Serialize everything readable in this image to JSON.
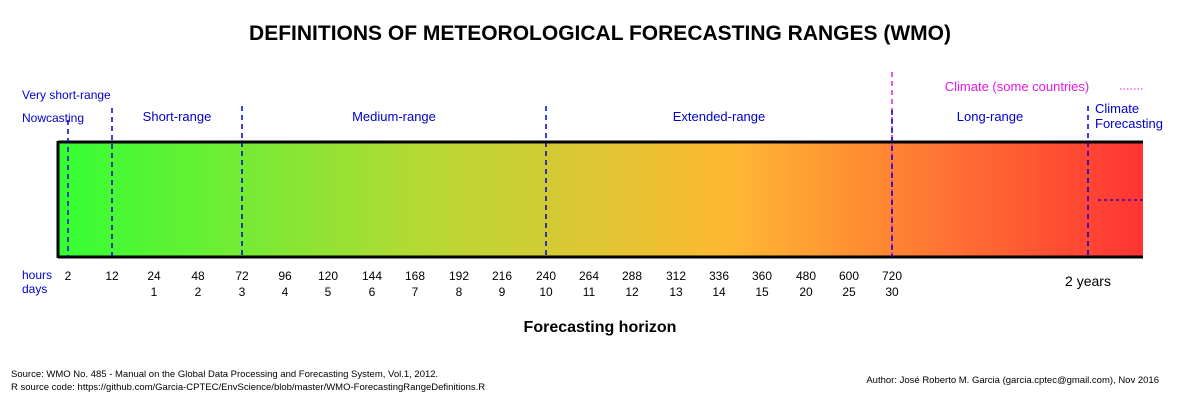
{
  "title": "DEFINITIONS OF METEOROLOGICAL FORECASTING RANGES (WMO)",
  "xlabel": "Forecasting horizon",
  "row_labels": {
    "hours": "hours",
    "days": "days"
  },
  "ranges": [
    {
      "id": "very-short-range",
      "label": "Very short-range",
      "color": "#0000cc"
    },
    {
      "id": "nowcasting",
      "label": "Nowcasting",
      "color": "#0000cc"
    },
    {
      "id": "short-range",
      "label": "Short-range",
      "color": "#0000cc"
    },
    {
      "id": "medium-range",
      "label": "Medium-range",
      "color": "#0000cc"
    },
    {
      "id": "extended-range",
      "label": "Extended-range",
      "color": "#0000cc"
    },
    {
      "id": "long-range",
      "label": "Long-range",
      "color": "#0000cc"
    },
    {
      "id": "climate-forecasting",
      "label": "Climate\nForecasting",
      "color": "#0000cc"
    },
    {
      "id": "climate-some-countries",
      "label": "Climate (some countries)",
      "color": "#e619e6"
    }
  ],
  "ticks": [
    {
      "hours": "2",
      "days": ""
    },
    {
      "hours": "12",
      "days": ""
    },
    {
      "hours": "24",
      "days": "1"
    },
    {
      "hours": "48",
      "days": "2"
    },
    {
      "hours": "72",
      "days": "3"
    },
    {
      "hours": "96",
      "days": "4"
    },
    {
      "hours": "120",
      "days": "5"
    },
    {
      "hours": "144",
      "days": "6"
    },
    {
      "hours": "168",
      "days": "7"
    },
    {
      "hours": "192",
      "days": "8"
    },
    {
      "hours": "216",
      "days": "9"
    },
    {
      "hours": "240",
      "days": "10"
    },
    {
      "hours": "264",
      "days": "11"
    },
    {
      "hours": "288",
      "days": "12"
    },
    {
      "hours": "312",
      "days": "13"
    },
    {
      "hours": "336",
      "days": "14"
    },
    {
      "hours": "360",
      "days": "15"
    },
    {
      "hours": "480",
      "days": "20"
    },
    {
      "hours": "600",
      "days": "25"
    },
    {
      "hours": "720",
      "days": "30"
    }
  ],
  "end_label": "2 years",
  "boundary_hours": [
    "2",
    "12",
    "72",
    "240",
    "720",
    "2 years"
  ],
  "gradient_colors": [
    "#33ff33",
    "#b3d934",
    "#ffb833",
    "#ff3333"
  ],
  "source": "Source: WMO No. 485 - Manual on the Global Data Processing and Forecasting System, Vol.1, 2012.",
  "rcode": "R source code: https://github.com/Garcia-CPTEC/EnvScience/blob/master/WMO-ForecastingRangeDefinitions.R",
  "author": "Author: José Roberto M. Garcia (garcia.cptec@gmail.com), Nov 2016"
}
